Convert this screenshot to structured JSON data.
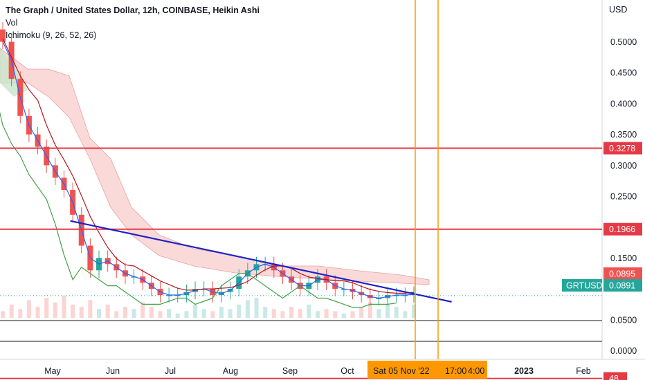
{
  "legend": {
    "title": "The Graph / United States Dollar, 12h, COINBASE, Heikin Ashi",
    "vol": "Vol",
    "ichimoku": "Ichimoku (9, 26, 52, 26)"
  },
  "colors": {
    "up": "#26a69a",
    "down": "#ef5350",
    "level_line": "#e53945",
    "trend_line": "#1f22c9",
    "tenkan": "#2962ff",
    "kijun": "#b2161f",
    "chikou": "#43a047",
    "cloud_bear": "#f8c9c9",
    "cloud_bull": "#c8e6c9",
    "vertical_marker": "#ff9800",
    "price_tag": "#26a69a"
  },
  "chart_data": {
    "type": "candlestick",
    "currency_label": "USD",
    "symbol": "GRTUSD",
    "y_ticks": [
      "0.5000",
      "0.4500",
      "0.4000",
      "0.3500",
      "0.3000",
      "0.2500",
      "0.1500",
      "0.0500",
      "0.0000"
    ],
    "x_ticks": [
      "May",
      "Jun",
      "Jul",
      "Aug",
      "Sep",
      "Oct",
      "2023",
      "Feb"
    ],
    "crosshair_date_label": "Sat 05 Nov '22",
    "crosshair_time_labels": [
      "17:00",
      "4:00"
    ],
    "horizontal_levels": [
      {
        "label": "0.3278",
        "value": 0.3278
      },
      {
        "label": "0.1966",
        "value": 0.1966
      },
      {
        "label": "48",
        "value": -0.045
      }
    ],
    "price_tags": [
      {
        "label": "0.0895",
        "value": 0.0895,
        "color": "#ef5350"
      },
      {
        "label": "0.0891",
        "value": 0.0891,
        "color": "#26a69a"
      }
    ],
    "trend_line": {
      "start": {
        "x": "2022-05-12",
        "y": 0.21
      },
      "end": {
        "x": "2022-11-20",
        "y": 0.079
      }
    },
    "close_series": [
      0.5,
      0.44,
      0.38,
      0.35,
      0.33,
      0.3,
      0.28,
      0.26,
      0.22,
      0.17,
      0.13,
      0.15,
      0.14,
      0.13,
      0.12,
      0.12,
      0.11,
      0.1,
      0.09,
      0.09,
      0.09,
      0.095,
      0.1,
      0.1,
      0.09,
      0.095,
      0.1,
      0.12,
      0.13,
      0.14,
      0.14,
      0.13,
      0.12,
      0.11,
      0.1,
      0.11,
      0.12,
      0.11,
      0.1,
      0.1,
      0.095,
      0.09,
      0.085,
      0.085,
      0.09,
      0.09,
      0.09,
      0.092
    ],
    "volume_series": [
      0.3,
      0.6,
      0.4,
      0.8,
      0.5,
      0.9,
      0.7,
      1.0,
      0.6,
      0.5,
      0.8,
      0.4,
      0.6,
      0.3,
      0.5,
      0.4,
      0.7,
      0.5,
      0.3,
      0.4,
      0.2,
      0.3,
      0.6,
      0.4,
      0.3,
      0.5,
      0.4,
      0.6,
      0.8,
      0.9,
      0.5,
      0.4,
      0.3,
      0.5,
      0.4,
      0.6,
      0.3,
      0.4,
      0.3,
      0.2,
      0.3,
      0.5,
      0.7,
      0.4,
      0.6,
      0.5,
      0.3,
      0.6
    ]
  }
}
